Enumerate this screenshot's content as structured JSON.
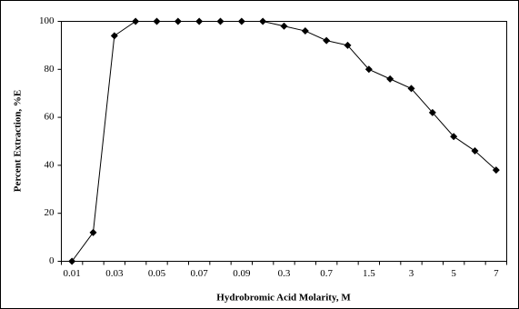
{
  "chart_data": {
    "type": "line",
    "x_label": "Hydrobromic Acid Molarity, M",
    "y_label": "Percent Extraction, %E",
    "categories": [
      "0.01",
      null,
      "0.03",
      null,
      "0.05",
      null,
      "0.07",
      null,
      "0.09",
      null,
      "0.3",
      null,
      "0.7",
      null,
      "1.5",
      null,
      "3",
      null,
      "5",
      null,
      "7"
    ],
    "series": [
      {
        "name": "Percent Extraction",
        "color": "#000000",
        "values": [
          0,
          12,
          94,
          100,
          100,
          100,
          100,
          100,
          100,
          100,
          98,
          96,
          92,
          90,
          80,
          76,
          72,
          62,
          52,
          46,
          38
        ]
      }
    ],
    "ylim": [
      0,
      100
    ],
    "yticks": [
      0,
      20,
      40,
      60,
      80,
      100
    ],
    "grid": false
  }
}
